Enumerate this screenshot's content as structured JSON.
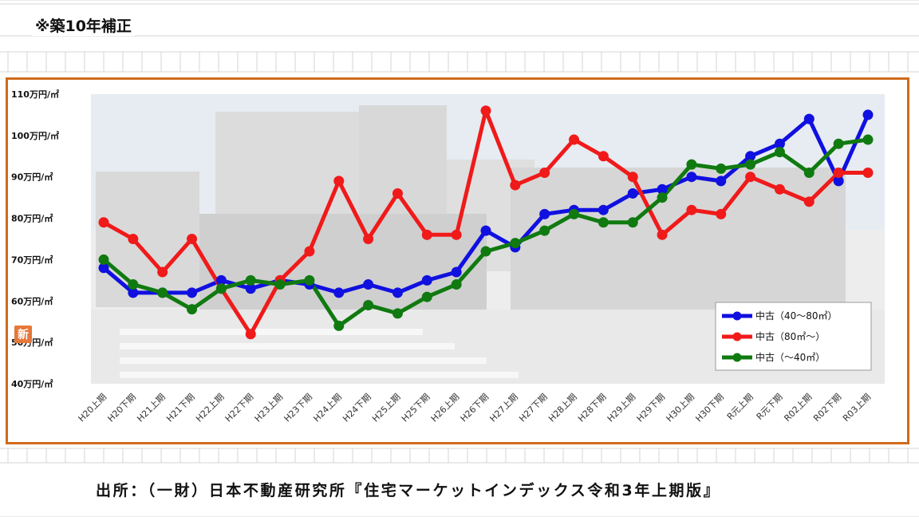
{
  "note": "※築10年補正",
  "source": "出所：（一財）日本不動産研究所『住宅マーケットインデックス令和3年上期版』",
  "logo_text": "新",
  "chart_data": {
    "type": "line",
    "title": "",
    "xlabel": "",
    "ylabel": "",
    "ylim": [
      40,
      110
    ],
    "yticks": [
      40,
      50,
      60,
      70,
      80,
      90,
      100,
      110
    ],
    "ytick_labels": [
      "40万円/㎡",
      "50万円/㎡",
      "60万円/㎡",
      "70万円/㎡",
      "80万円/㎡",
      "90万円/㎡",
      "100万円/㎡",
      "110万円/㎡"
    ],
    "categories": [
      "H20上期",
      "H20下期",
      "H21上期",
      "H21下期",
      "H22上期",
      "H22下期",
      "H23上期",
      "H23下期",
      "H24上期",
      "H24下期",
      "H25上期",
      "H25下期",
      "H26上期",
      "H26下期",
      "H27上期",
      "H27下期",
      "H28上期",
      "H28下期",
      "H29上期",
      "H29下期",
      "H30上期",
      "H30下期",
      "R元上期",
      "R元下期",
      "R02上期",
      "R02下期",
      "R03上期"
    ],
    "series": [
      {
        "name": "中古（40～80㎡）",
        "color": "#1010e0",
        "values": [
          68,
          62,
          62,
          62,
          65,
          63,
          65,
          64,
          62,
          64,
          62,
          65,
          67,
          77,
          73,
          81,
          82,
          82,
          86,
          87,
          90,
          89,
          95,
          98,
          104,
          89,
          105
        ]
      },
      {
        "name": "中古（80㎡～）",
        "color": "#f01a1a",
        "values": [
          79,
          75,
          67,
          75,
          63,
          52,
          65,
          72,
          89,
          75,
          86,
          76,
          76,
          106,
          88,
          91,
          99,
          95,
          90,
          76,
          82,
          81,
          90,
          87,
          84,
          91,
          91
        ]
      },
      {
        "name": "中古（～40㎡）",
        "color": "#107a10",
        "values": [
          70,
          64,
          62,
          58,
          63,
          65,
          64,
          65,
          54,
          59,
          57,
          61,
          64,
          72,
          74,
          77,
          81,
          79,
          79,
          85,
          93,
          92,
          93,
          96,
          91,
          98,
          99
        ]
      }
    ],
    "legend_position": "lower-right",
    "grid": false
  }
}
